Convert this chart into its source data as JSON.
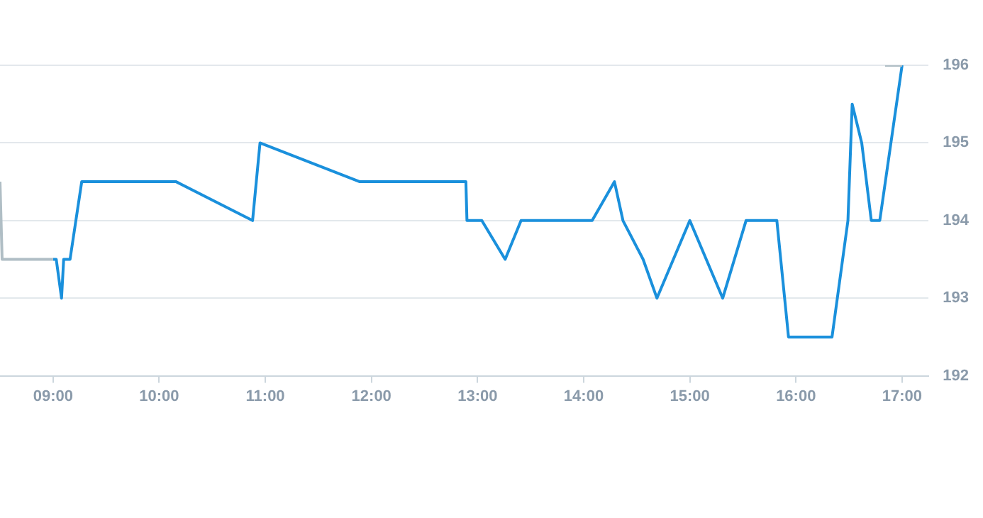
{
  "chart_data": {
    "type": "line",
    "x": [
      9.0,
      9.03,
      9.08,
      9.1,
      9.16,
      9.27,
      10.16,
      10.88,
      10.95,
      11.89,
      12.89,
      12.9,
      13.04,
      13.26,
      13.41,
      14.08,
      14.29,
      14.37,
      14.56,
      14.69,
      15.0,
      15.31,
      15.53,
      15.82,
      15.93,
      16.34,
      16.49,
      16.53,
      16.62,
      16.71,
      16.79,
      17.0
    ],
    "series": [
      {
        "color": "#b0bec5",
        "x": [
          8.5,
          8.52,
          9.0,
          12.0,
          16.84,
          17.0
        ],
        "values": [
          194.5,
          193.5,
          193.5,
          null,
          196,
          196
        ]
      },
      {
        "color": "#1a90dc",
        "values": [
          193.5,
          193.5,
          193,
          193.5,
          193.5,
          194.5,
          194.5,
          194,
          195,
          194.5,
          194.5,
          194,
          194,
          193.5,
          194,
          194,
          194.5,
          194,
          193.5,
          193,
          194,
          193,
          194,
          194,
          192.5,
          192.5,
          194,
          195.5,
          195,
          194,
          194,
          196
        ]
      }
    ],
    "xlim": [
      8.5,
      17.25
    ],
    "xticks": [
      {
        "value": 9,
        "label": "09:00"
      },
      {
        "value": 10,
        "label": "10:00"
      },
      {
        "value": 11,
        "label": "11:00"
      },
      {
        "value": 12,
        "label": "12:00"
      },
      {
        "value": 13,
        "label": "13:00"
      },
      {
        "value": 14,
        "label": "14:00"
      },
      {
        "value": 15,
        "label": "15:00"
      },
      {
        "value": 16,
        "label": "16:00"
      },
      {
        "value": 17,
        "label": "17:00"
      }
    ],
    "ylim": [
      192,
      196
    ],
    "yticks": [
      192,
      193,
      194,
      195,
      196
    ],
    "grid": "y",
    "marker": "none"
  }
}
